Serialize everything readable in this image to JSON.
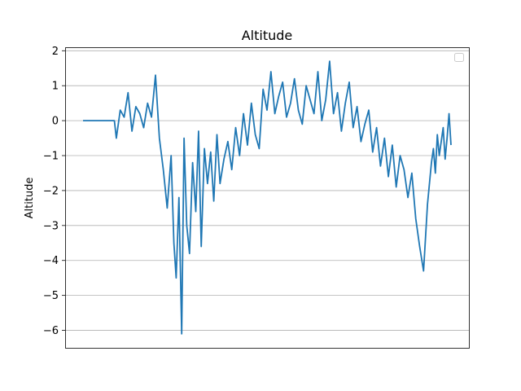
{
  "chart_data": {
    "type": "line",
    "title": "Altitude",
    "xlabel": "",
    "ylabel": "Altitude",
    "x_range": [
      0,
      1000
    ],
    "ylim": [
      -6.5,
      2.1
    ],
    "y_ticks": [
      2,
      1,
      0,
      -1,
      -2,
      -3,
      -4,
      -5,
      -6
    ],
    "grid": "horizontal",
    "legend": "top-right",
    "color": "#1f77b4",
    "series": [
      {
        "x": [
          0,
          80,
          85,
          95,
          105,
          115,
          125,
          135,
          145,
          155,
          165,
          175,
          185,
          195,
          205,
          215,
          225,
          232,
          238,
          245,
          252,
          258,
          265,
          272,
          280,
          288,
          295,
          302,
          310,
          318,
          326,
          334,
          342,
          350,
          360,
          370,
          380,
          390,
          400,
          410,
          420,
          430,
          440,
          450,
          460,
          470,
          480,
          490,
          500,
          510,
          520,
          530,
          540,
          550,
          560,
          570,
          580,
          590,
          600,
          610,
          620,
          630,
          640,
          650,
          660,
          670,
          680,
          690,
          700,
          710,
          720,
          730,
          740,
          750,
          760,
          770,
          780,
          790,
          800,
          810,
          820,
          830,
          840,
          850,
          860,
          870,
          880,
          890,
          895,
          900,
          905,
          910,
          915,
          920,
          925,
          930,
          935,
          940
        ],
        "y": [
          0,
          0,
          -0.5,
          0.3,
          0.1,
          0.8,
          -0.3,
          0.4,
          0.2,
          -0.2,
          0.5,
          0.1,
          1.3,
          -0.5,
          -1.4,
          -2.5,
          -1.0,
          -3.5,
          -4.5,
          -2.2,
          -6.1,
          -0.5,
          -3.0,
          -3.8,
          -1.2,
          -2.6,
          -0.3,
          -3.6,
          -0.8,
          -1.8,
          -0.9,
          -2.3,
          -0.4,
          -1.8,
          -1.1,
          -0.6,
          -1.4,
          -0.2,
          -1.0,
          0.2,
          -0.7,
          0.5,
          -0.4,
          -0.8,
          0.9,
          0.3,
          1.4,
          0.2,
          0.7,
          1.1,
          0.1,
          0.5,
          1.2,
          0.3,
          -0.1,
          1.0,
          0.6,
          0.2,
          1.4,
          0.0,
          0.6,
          1.7,
          0.2,
          0.8,
          -0.3,
          0.5,
          1.1,
          -0.2,
          0.4,
          -0.6,
          -0.1,
          0.3,
          -0.9,
          -0.2,
          -1.3,
          -0.5,
          -1.6,
          -0.7,
          -1.9,
          -1.0,
          -1.4,
          -2.2,
          -1.5,
          -2.8,
          -3.6,
          -4.3,
          -2.4,
          -1.2,
          -0.8,
          -1.5,
          -0.4,
          -1.0,
          -0.6,
          -0.2,
          -1.1,
          -0.5,
          0.2,
          -0.7
        ]
      }
    ]
  }
}
